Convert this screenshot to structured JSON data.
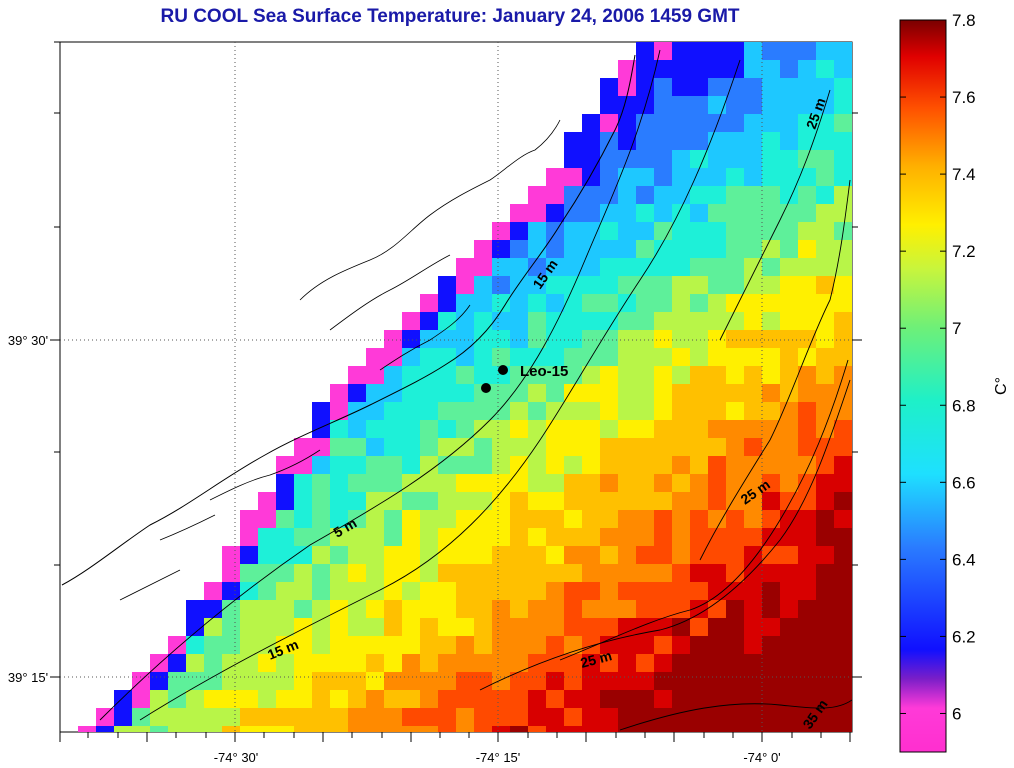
{
  "title": "RU COOL  Sea Surface Temperature:  January 24, 2006 1459 GMT",
  "axes": {
    "x_ticks": [
      "-74° 30'",
      "-74° 15'",
      "-74° 0'"
    ],
    "y_ticks": [
      "39° 30'",
      "39° 15'"
    ]
  },
  "colorbar": {
    "unit": "C°",
    "ticks": [
      "6",
      "6.2",
      "6.4",
      "6.6",
      "6.8",
      "7",
      "7.2",
      "7.4",
      "7.6",
      "7.8"
    ],
    "min": 5.9,
    "max": 7.8
  },
  "labels": {
    "station": "Leo-15",
    "contour_5m": "5 m",
    "contour_15m_a": "15 m",
    "contour_15m_b": "15 m",
    "contour_25m_a": "25 m",
    "contour_25m_b": "25 m",
    "contour_25m_c": "25 m",
    "contour_35m": "35 m"
  },
  "colors": {
    "title": "#1a1aa8",
    "land": "#ffffff",
    "coast": "#000000"
  }
}
